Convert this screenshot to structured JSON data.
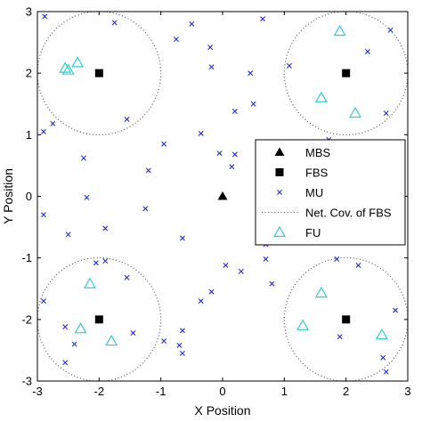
{
  "chart_data": {
    "type": "scatter",
    "xlabel": "X Position",
    "ylabel": "Y Position",
    "xlim": [
      -3,
      3
    ],
    "ylim": [
      -3,
      3
    ],
    "xticks": [
      "-3",
      "-2",
      "-1",
      "0",
      "1",
      "2",
      "3"
    ],
    "yticks": [
      "-3",
      "-2",
      "-1",
      "0",
      "1",
      "2",
      "3"
    ],
    "grid": false,
    "legend_position": "right",
    "coverage_radius": 1,
    "colors": {
      "mbs": "#000000",
      "fbs": "#000000",
      "mu": "#2b2bd6",
      "coverage": "#555555",
      "fu": "#33cccc",
      "axes": "#000000"
    },
    "series": [
      {
        "name": "MBS",
        "marker": "triangle-filled",
        "points": [
          [
            0,
            0
          ]
        ]
      },
      {
        "name": "FBS",
        "marker": "square-filled",
        "points": [
          [
            -2,
            2
          ],
          [
            2,
            2
          ],
          [
            -2,
            -2
          ],
          [
            2,
            -2
          ]
        ]
      },
      {
        "name": "MU",
        "marker": "x",
        "points": [
          [
            -2.88,
            2.92
          ],
          [
            -1.75,
            2.82
          ],
          [
            -0.5,
            2.8
          ],
          [
            0.65,
            2.88
          ],
          [
            2.72,
            2.7
          ],
          [
            -0.75,
            2.55
          ],
          [
            -0.2,
            2.42
          ],
          [
            -0.18,
            2.1
          ],
          [
            1.08,
            2.12
          ],
          [
            0.45,
            2.0
          ],
          [
            2.35,
            2.35
          ],
          [
            -2.9,
            1.05
          ],
          [
            -2.75,
            1.18
          ],
          [
            -1.55,
            1.25
          ],
          [
            0.5,
            1.5
          ],
          [
            0.2,
            1.38
          ],
          [
            2.65,
            1.35
          ],
          [
            -0.95,
            0.85
          ],
          [
            -0.35,
            1.02
          ],
          [
            1.72,
            0.92
          ],
          [
            -2.25,
            0.62
          ],
          [
            -1.2,
            0.42
          ],
          [
            0.15,
            0.48
          ],
          [
            -0.05,
            0.7
          ],
          [
            0.2,
            0.68
          ],
          [
            -2.2,
            -0.02
          ],
          [
            -1.25,
            -0.2
          ],
          [
            -2.9,
            -0.3
          ],
          [
            -1.9,
            -0.52
          ],
          [
            -2.5,
            -0.62
          ],
          [
            -0.65,
            -0.68
          ],
          [
            0.7,
            -0.78
          ],
          [
            -2.05,
            -1.08
          ],
          [
            -1.9,
            -1.05
          ],
          [
            0.05,
            -1.12
          ],
          [
            0.3,
            -1.22
          ],
          [
            0.7,
            -1.02
          ],
          [
            1.85,
            -1.02
          ],
          [
            2.2,
            -1.12
          ],
          [
            -2.9,
            -1.7
          ],
          [
            -1.55,
            -1.32
          ],
          [
            -0.18,
            -1.55
          ],
          [
            -0.35,
            -1.7
          ],
          [
            0.8,
            -1.42
          ],
          [
            -2.55,
            -2.12
          ],
          [
            -1.45,
            -2.22
          ],
          [
            -0.65,
            -2.18
          ],
          [
            -0.65,
            -2.55
          ],
          [
            -0.7,
            -2.42
          ],
          [
            -0.95,
            -2.35
          ],
          [
            -2.4,
            -2.4
          ],
          [
            1.9,
            -2.28
          ],
          [
            2.8,
            -1.85
          ],
          [
            -2.55,
            -2.7
          ],
          [
            2.6,
            -2.62
          ],
          [
            2.65,
            -2.85
          ]
        ]
      },
      {
        "name": "Net. Cov. of FBS",
        "marker": "dotted-circle",
        "points": [
          [
            -2,
            2
          ],
          [
            2,
            2
          ],
          [
            -2,
            -2
          ],
          [
            2,
            -2
          ]
        ]
      },
      {
        "name": "FU",
        "marker": "triangle-open",
        "points": [
          [
            -2.5,
            2.05
          ],
          [
            -2.55,
            2.08
          ],
          [
            -2.35,
            2.17
          ],
          [
            1.9,
            2.68
          ],
          [
            1.6,
            1.6
          ],
          [
            2.15,
            1.35
          ],
          [
            -2.15,
            -1.42
          ],
          [
            -2.3,
            -2.15
          ],
          [
            -1.8,
            -2.35
          ],
          [
            1.6,
            -1.57
          ],
          [
            1.3,
            -2.1
          ],
          [
            2.58,
            -2.25
          ]
        ]
      }
    ]
  }
}
